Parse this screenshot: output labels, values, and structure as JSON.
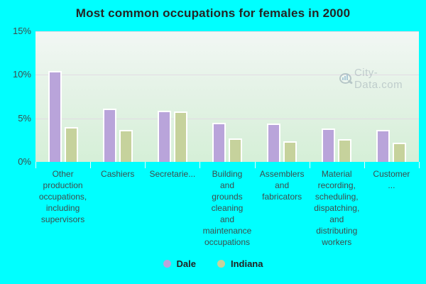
{
  "title": "Most common occupations for females in 2000",
  "watermark": "City-Data.com",
  "colors": {
    "background": "#00ffff",
    "dale_bar": "#b9a4da",
    "indiana_bar": "#c6d29c",
    "gridline": "#e2dbe4",
    "title_text": "#252525",
    "axis_text": "#3d4d4d"
  },
  "chart_data": {
    "type": "bar",
    "title": "Most common occupations for females in 2000",
    "categories": [
      "Other production occupations, including supervisors",
      "Cashiers",
      "Secretarie...",
      "Building and grounds cleaning and maintenance occupations",
      "Assemblers and fabricators",
      "Material recording, scheduling, dispatching, and distributing workers",
      "Customer ..."
    ],
    "series": [
      {
        "name": "Dale",
        "color": "#b9a4da",
        "values": [
          10.4,
          6.1,
          5.9,
          4.5,
          4.4,
          3.8,
          3.7
        ]
      },
      {
        "name": "Indiana",
        "color": "#c6d29c",
        "values": [
          4.0,
          3.7,
          5.8,
          2.7,
          2.4,
          2.6,
          2.2
        ]
      }
    ],
    "xlabel": "",
    "ylabel": "",
    "ylim": [
      0,
      15
    ],
    "yticks": [
      {
        "value": 0,
        "label": "0%"
      },
      {
        "value": 5,
        "label": "5%"
      },
      {
        "value": 10,
        "label": "10%"
      },
      {
        "value": 15,
        "label": "15%"
      }
    ],
    "grid": "horizontal",
    "legend_position": "bottom"
  },
  "legend": {
    "items": [
      {
        "label": "Dale",
        "color": "#b9a4da"
      },
      {
        "label": "Indiana",
        "color": "#c6d29c"
      }
    ]
  }
}
